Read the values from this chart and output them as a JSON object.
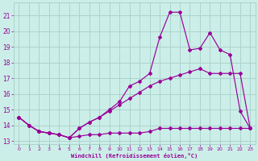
{
  "xlabel": "Windchill (Refroidissement éolien,°C)",
  "background_color": "#cceee8",
  "grid_color": "#aad4cc",
  "line_color": "#990099",
  "spine_color": "#aaaaaa",
  "xlim": [
    -0.5,
    23.5
  ],
  "ylim": [
    12.8,
    21.8
  ],
  "yticks": [
    13,
    14,
    15,
    16,
    17,
    18,
    19,
    20,
    21
  ],
  "xticks": [
    0,
    1,
    2,
    3,
    4,
    5,
    6,
    7,
    8,
    9,
    10,
    11,
    12,
    13,
    14,
    15,
    16,
    17,
    18,
    19,
    20,
    21,
    22,
    23
  ],
  "line1_x": [
    0,
    1,
    2,
    3,
    4,
    5,
    6,
    7,
    8,
    9,
    10,
    11,
    12,
    13,
    14,
    15,
    16,
    17,
    18,
    19,
    20,
    21,
    22,
    23
  ],
  "line1_y": [
    14.5,
    14.0,
    13.6,
    13.5,
    13.4,
    13.2,
    13.3,
    13.4,
    13.4,
    13.5,
    13.5,
    13.5,
    13.5,
    13.6,
    13.8,
    13.8,
    13.8,
    13.8,
    13.8,
    13.8,
    13.8,
    13.8,
    13.8,
    13.8
  ],
  "line2_x": [
    0,
    1,
    2,
    3,
    4,
    5,
    6,
    7,
    8,
    9,
    10,
    11,
    12,
    13,
    14,
    15,
    16,
    17,
    18,
    19,
    20,
    21,
    22,
    23
  ],
  "line2_y": [
    14.5,
    14.0,
    13.6,
    13.5,
    13.4,
    13.2,
    13.8,
    14.2,
    14.5,
    14.9,
    15.3,
    15.7,
    16.1,
    16.5,
    16.8,
    17.0,
    17.2,
    17.4,
    17.6,
    17.3,
    17.3,
    17.3,
    17.3,
    13.8
  ],
  "line3_x": [
    0,
    1,
    2,
    3,
    4,
    5,
    6,
    7,
    8,
    9,
    10,
    11,
    12,
    13,
    14,
    15,
    16,
    17,
    18,
    19,
    20,
    21,
    22,
    23
  ],
  "line3_y": [
    14.5,
    14.0,
    13.6,
    13.5,
    13.4,
    13.2,
    13.8,
    14.2,
    14.5,
    15.0,
    15.5,
    16.5,
    16.8,
    17.3,
    19.6,
    21.2,
    21.2,
    18.8,
    18.9,
    19.9,
    18.8,
    18.5,
    14.9,
    13.8
  ]
}
